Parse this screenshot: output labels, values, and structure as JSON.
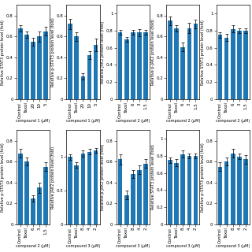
{
  "chart_data": [
    {
      "type": "bar",
      "categories": [
        "Control",
        "Taxol",
        "20",
        "10",
        "5"
      ],
      "values": [
        0.68,
        0.62,
        0.55,
        0.6,
        0.65
      ],
      "errors": [
        0.03,
        0.03,
        0.04,
        0.05,
        0.04
      ],
      "xlabel": "compound 1 (μM)",
      "ylabel": "Relative STAT3 protein level (fold)",
      "ylim": [
        0.0,
        0.9
      ],
      "yticks": [
        0,
        0.2,
        0.4,
        0.6,
        0.8
      ]
    },
    {
      "type": "bar",
      "categories": [
        "Control",
        "Taxol",
        "20",
        "10",
        "5"
      ],
      "values": [
        0.72,
        0.6,
        0.22,
        0.42,
        0.52
      ],
      "errors": [
        0.05,
        0.04,
        0.03,
        0.04,
        0.06
      ],
      "xlabel": "compound 1 (μM)",
      "ylabel": "Relative p-STAT3 protein level (fold)",
      "ylim": [
        0.0,
        0.9
      ],
      "yticks": [
        0,
        0.2,
        0.4,
        0.6,
        0.8
      ]
    },
    {
      "type": "bar",
      "categories": [
        "Control",
        "Taxol",
        "6",
        "3",
        "1.5"
      ],
      "values": [
        0.78,
        0.7,
        0.78,
        0.78,
        0.78
      ],
      "errors": [
        0.03,
        0.03,
        0.03,
        0.04,
        0.03
      ],
      "xlabel": "compound 2 (μM)",
      "ylabel": "Relative JAK2 protein level (fold)",
      "ylim": [
        0.0,
        1.1
      ],
      "yticks": [
        0,
        0.2,
        0.4,
        0.6,
        0.8,
        1
      ]
    },
    {
      "type": "bar",
      "categories": [
        "Control",
        "Taxol",
        "6",
        "3",
        "1.5"
      ],
      "values": [
        0.75,
        0.68,
        0.5,
        0.68,
        0.72
      ],
      "errors": [
        0.04,
        0.03,
        0.04,
        0.05,
        0.04
      ],
      "xlabel": "compound 2 (μM)",
      "ylabel": "Relative p-JAK2 protein level (fold)",
      "ylim": [
        0.0,
        0.9
      ],
      "yticks": [
        0,
        0.2,
        0.4,
        0.6,
        0.8
      ]
    },
    {
      "type": "bar",
      "categories": [
        "Control",
        "Taxol",
        "6",
        "3",
        "1.5"
      ],
      "values": [
        0.75,
        0.72,
        0.82,
        0.8,
        0.8
      ],
      "errors": [
        0.03,
        0.04,
        0.04,
        0.03,
        0.03
      ],
      "xlabel": "compound 2 (μM)",
      "ylabel": "Relative STAT3 protein level (fold)",
      "ylim": [
        0.0,
        1.1
      ],
      "yticks": [
        0,
        0.2,
        0.4,
        0.6,
        0.8,
        1
      ]
    },
    {
      "type": "bar",
      "categories": [
        "Control",
        "Taxol",
        "6",
        "3",
        "1.5"
      ],
      "values": [
        0.68,
        0.6,
        0.25,
        0.35,
        0.55
      ],
      "errors": [
        0.04,
        0.04,
        0.03,
        0.05,
        0.04
      ],
      "xlabel": "compound 2 (μM)",
      "ylabel": "Relative p-STAT3 protein level (fold)",
      "ylim": [
        0.0,
        0.9
      ],
      "yticks": [
        0,
        0.2,
        0.4,
        0.6,
        0.8
      ]
    },
    {
      "type": "bar",
      "categories": [
        "Control",
        "Taxol",
        "8",
        "4",
        "2"
      ],
      "values": [
        1.0,
        0.88,
        1.05,
        1.08,
        1.1
      ],
      "errors": [
        0.04,
        0.04,
        0.05,
        0.04,
        0.04
      ],
      "xlabel": "compound 3 (μM)",
      "ylabel": "Relative JAK2 protein level (fold)",
      "ylim": [
        0.0,
        1.4
      ],
      "yticks": [
        0,
        0.5,
        1
      ]
    },
    {
      "type": "bar",
      "categories": [
        "Control",
        "Taxol",
        "8",
        "4",
        "2"
      ],
      "values": [
        0.62,
        0.28,
        0.48,
        0.52,
        0.58
      ],
      "errors": [
        0.05,
        0.04,
        0.04,
        0.04,
        0.04
      ],
      "xlabel": "compound 3 (μM)",
      "ylabel": "Relative p-JAK2 protein level (fold)",
      "ylim": [
        0.0,
        0.9
      ],
      "yticks": [
        0,
        0.2,
        0.4,
        0.6,
        0.8
      ]
    },
    {
      "type": "bar",
      "categories": [
        "Control",
        "Taxol",
        "8",
        "4",
        "2"
      ],
      "values": [
        0.75,
        0.72,
        0.82,
        0.8,
        0.8
      ],
      "errors": [
        0.03,
        0.04,
        0.04,
        0.03,
        0.03
      ],
      "xlabel": "compound 3 (μM)",
      "ylabel": "Relative STAT3 protein level (fold)",
      "ylim": [
        0.0,
        1.1
      ],
      "yticks": [
        0,
        0.2,
        0.4,
        0.6,
        0.8,
        1
      ]
    },
    {
      "type": "bar",
      "categories": [
        "Control",
        "Taxol",
        "8",
        "4",
        "2"
      ],
      "values": [
        0.55,
        0.6,
        0.68,
        0.65,
        0.62
      ],
      "errors": [
        0.04,
        0.04,
        0.04,
        0.03,
        0.04
      ],
      "xlabel": "compound 3 (μM)",
      "ylabel": "Relative p-STAT3 protein level (fold)",
      "ylim": [
        0.0,
        0.9
      ],
      "yticks": [
        0,
        0.2,
        0.4,
        0.6,
        0.8
      ]
    }
  ]
}
